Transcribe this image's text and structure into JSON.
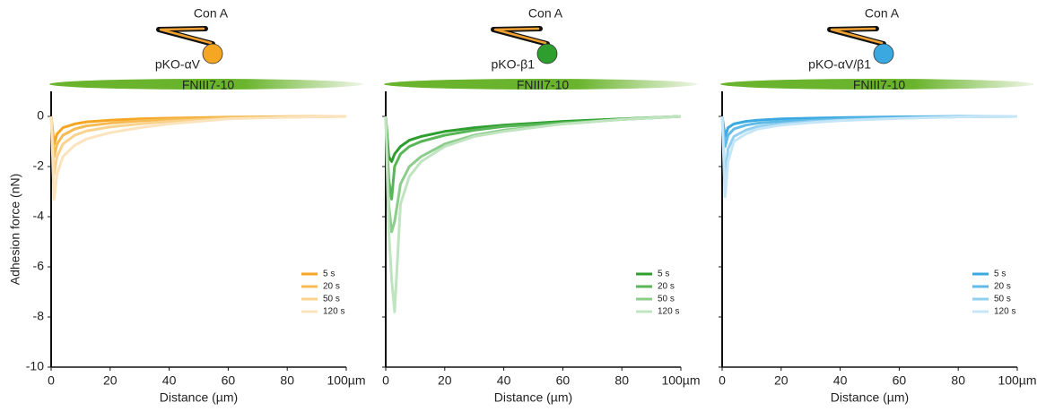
{
  "chart_data": [
    {
      "type": "line",
      "probe_label": "Con A",
      "cell_label": "pKO-αV",
      "substrate_label": "FNIII7-10",
      "ylabel": "Adhesion force (nN)",
      "xlabel": "Distance (µm)",
      "x": [
        0,
        1,
        2,
        4,
        8,
        12,
        20,
        30,
        40,
        60,
        80,
        100
      ],
      "series": [
        {
          "name": "5 s",
          "color": "#f5a623",
          "values": [
            0,
            -1.1,
            -0.7,
            -0.45,
            -0.3,
            -0.22,
            -0.15,
            -0.1,
            -0.07,
            -0.03,
            -0.01,
            0
          ]
        },
        {
          "name": "20 s",
          "color": "#f7bb55",
          "values": [
            0,
            -1.6,
            -1.1,
            -0.75,
            -0.5,
            -0.38,
            -0.27,
            -0.18,
            -0.12,
            -0.05,
            -0.02,
            0
          ]
        },
        {
          "name": "50 s",
          "color": "#f9d28e",
          "values": [
            0,
            -2.3,
            -1.6,
            -1.1,
            -0.75,
            -0.58,
            -0.42,
            -0.3,
            -0.2,
            -0.08,
            -0.03,
            0
          ]
        },
        {
          "name": "120 s",
          "color": "#fbe4bd",
          "values": [
            0,
            -3.3,
            -2.3,
            -1.6,
            -1.15,
            -0.9,
            -0.65,
            -0.45,
            -0.3,
            -0.1,
            -0.03,
            0
          ]
        }
      ],
      "xlim": [
        0,
        100
      ],
      "xticks": [
        0,
        20,
        40,
        60,
        80,
        {
          "value": 100,
          "label": "100µm"
        }
      ],
      "ylim": [
        -10,
        1
      ],
      "yticks": [
        -10,
        -8,
        -6,
        -4,
        -2,
        0
      ],
      "show_ytick_labels": true,
      "legend": "lower right"
    },
    {
      "type": "line",
      "probe_label": "Con A",
      "cell_label": "pKO-β1",
      "substrate_label": "FNIII7-10",
      "xlabel": "Distance (µm)",
      "x": [
        0,
        1,
        2,
        3,
        5,
        8,
        12,
        20,
        30,
        40,
        60,
        80,
        100
      ],
      "series": [
        {
          "name": "5 s",
          "color": "#2e9e2e",
          "values": [
            0,
            -1.6,
            -1.8,
            -1.5,
            -1.2,
            -0.95,
            -0.8,
            -0.6,
            -0.45,
            -0.35,
            -0.2,
            -0.1,
            0
          ]
        },
        {
          "name": "20 s",
          "color": "#58b658",
          "values": [
            0,
            -2.5,
            -3.3,
            -2.0,
            -1.5,
            -1.2,
            -1.0,
            -0.75,
            -0.55,
            -0.4,
            -0.25,
            -0.12,
            0
          ]
        },
        {
          "name": "50 s",
          "color": "#8ccd8c",
          "values": [
            0,
            -3.5,
            -4.6,
            -4.2,
            -2.7,
            -2.0,
            -1.6,
            -1.1,
            -0.75,
            -0.55,
            -0.3,
            -0.12,
            0
          ]
        },
        {
          "name": "120 s",
          "color": "#c0e4c0",
          "values": [
            0,
            -4.5,
            -6.5,
            -7.8,
            -3.5,
            -2.4,
            -1.8,
            -1.2,
            -0.8,
            -0.6,
            -0.3,
            -0.12,
            0
          ]
        }
      ],
      "xlim": [
        0,
        100
      ],
      "xticks": [
        0,
        20,
        40,
        60,
        80,
        {
          "value": 100,
          "label": "100µm"
        }
      ],
      "ylim": [
        -10,
        1
      ],
      "yticks": [
        -10,
        -8,
        -6,
        -4,
        -2,
        0
      ],
      "show_ytick_labels": false,
      "legend": "lower right"
    },
    {
      "type": "line",
      "probe_label": "Con A",
      "cell_label": "pKO-αV/β1",
      "substrate_label": "FNIII7-10",
      "xlabel": "Distance (µm)",
      "x": [
        0,
        1,
        2,
        4,
        8,
        12,
        20,
        30,
        40,
        60,
        80,
        100
      ],
      "series": [
        {
          "name": "5 s",
          "color": "#3ba9e0",
          "values": [
            0,
            -0.8,
            -0.45,
            -0.3,
            -0.2,
            -0.15,
            -0.1,
            -0.07,
            -0.05,
            -0.02,
            0,
            0
          ]
        },
        {
          "name": "20 s",
          "color": "#5fbae7",
          "values": [
            0,
            -1.2,
            -0.75,
            -0.5,
            -0.35,
            -0.27,
            -0.2,
            -0.15,
            -0.1,
            -0.05,
            -0.02,
            0
          ]
        },
        {
          "name": "50 s",
          "color": "#93d0ef",
          "values": [
            0,
            -2.5,
            -1.3,
            -0.8,
            -0.55,
            -0.4,
            -0.3,
            -0.2,
            -0.15,
            -0.07,
            -0.02,
            0
          ]
        },
        {
          "name": "120 s",
          "color": "#c6e6f7",
          "values": [
            0,
            -3.2,
            -1.8,
            -1.0,
            -0.7,
            -0.5,
            -0.35,
            -0.25,
            -0.17,
            -0.08,
            -0.02,
            0
          ]
        }
      ],
      "xlim": [
        0,
        100
      ],
      "xticks": [
        0,
        20,
        40,
        60,
        80,
        {
          "value": 100,
          "label": "100µm"
        }
      ],
      "ylim": [
        -10,
        1
      ],
      "yticks": [
        -10,
        -8,
        -6,
        -4,
        -2,
        0
      ],
      "show_ytick_labels": false,
      "legend": "lower right"
    }
  ]
}
